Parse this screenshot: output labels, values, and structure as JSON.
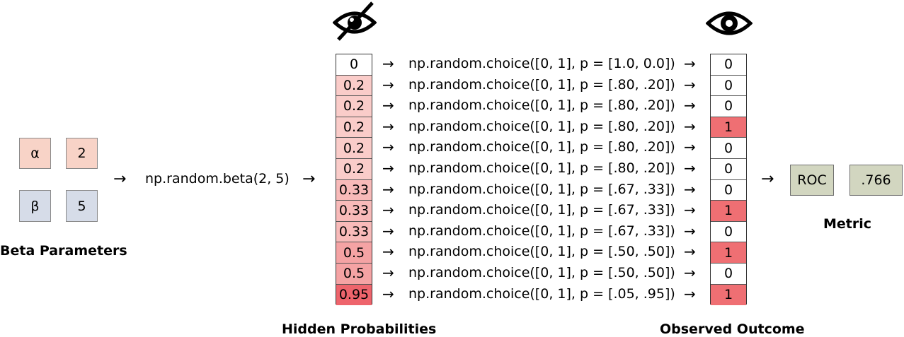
{
  "beta_params": {
    "alpha_symbol": "α",
    "alpha_value": "2",
    "beta_symbol": "β",
    "beta_value": "5",
    "label": "Beta Parameters"
  },
  "beta_call": "np.random.beta(2, 5)",
  "hidden": {
    "label": "Hidden Probabilities",
    "icon": "eye-crossed-icon",
    "values": [
      "0",
      "0.2",
      "0.2",
      "0.2",
      "0.2",
      "0.2",
      "0.33",
      "0.33",
      "0.33",
      "0.5",
      "0.5",
      "0.95"
    ]
  },
  "choices": [
    "np.random.choice([0, 1], p = [1.0, 0.0])",
    "np.random.choice([0, 1], p = [.80, .20])",
    "np.random.choice([0, 1], p = [.80, .20])",
    "np.random.choice([0, 1], p = [.80, .20])",
    "np.random.choice([0, 1], p = [.80, .20])",
    "np.random.choice([0, 1], p = [.80, .20])",
    "np.random.choice([0, 1], p = [.67, .33])",
    "np.random.choice([0, 1], p = [.67, .33])",
    "np.random.choice([0, 1], p = [.67, .33])",
    "np.random.choice([0, 1], p = [.50, .50])",
    "np.random.choice([0, 1], p = [.50, .50])",
    "np.random.choice([0, 1], p = [.05, .95])"
  ],
  "observed": {
    "label": "Observed Outcome",
    "icon": "eye-icon",
    "values": [
      "0",
      "0",
      "0",
      "1",
      "0",
      "0",
      "0",
      "1",
      "0",
      "1",
      "0",
      "1"
    ]
  },
  "metric": {
    "name": "ROC",
    "value": ".766",
    "label": "Metric"
  },
  "colors": {
    "pink": "#f8d3c7",
    "blue": "#d6dce8",
    "green": "#d2d6c0",
    "red": "#ef6f73"
  }
}
